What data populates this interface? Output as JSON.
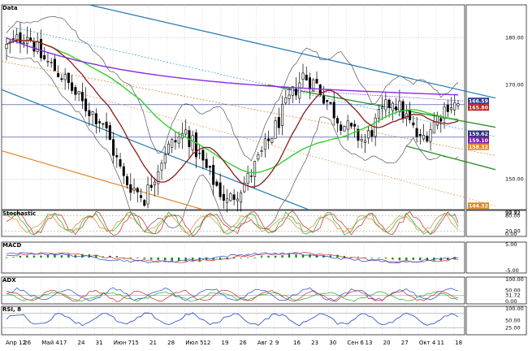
{
  "chart_data": {
    "type": "candlestick-stock-chart",
    "grid": true,
    "x_tick_labels": [
      "Апр 12",
      "26",
      "Май 4",
      "17",
      "24",
      "31",
      "Июн 7",
      "15",
      "21",
      "28",
      "Июл 5",
      "12",
      "19",
      "26",
      "Авг 2",
      "9",
      "16",
      "23",
      "30",
      "Сен 6",
      "13",
      "20",
      "27",
      "Окт 4",
      "11",
      "18"
    ],
    "panels": [
      {
        "name": "Data",
        "ylim": [
          143.5,
          187
        ],
        "y_tick_labels": [
          "180.00",
          "170.00",
          "150.00"
        ],
        "y_tick_values": [
          180,
          170,
          150
        ],
        "value_tags": [
          {
            "text": "166.59",
            "value": 166.59,
            "color": "#2b3c9a"
          },
          {
            "text": "165.80",
            "value": 165.8,
            "color": "#cc1a1a"
          },
          {
            "text": "159.62",
            "value": 159.62,
            "color": "#2d2d7a"
          },
          {
            "text": "159.10",
            "value": 159.1,
            "color": "#7b1aa8"
          },
          {
            "text": "158.32",
            "value": 158.32,
            "color": "#e0862a"
          },
          {
            "text": "144.32",
            "value": 144.32,
            "color": "#e0862a"
          }
        ]
      },
      {
        "name": "Stochastic",
        "y_tick_labels": [
          "97.72",
          "90.92",
          "80.00",
          "20.00",
          "0.00"
        ],
        "y_tick_values": [
          97.72,
          90.92,
          80,
          20,
          0
        ],
        "ylim": [
          0,
          100
        ]
      },
      {
        "name": "MACD",
        "y_tick_labels": [
          "5.00",
          "-5.00"
        ],
        "y_tick_values": [
          5,
          -5
        ],
        "ylim": [
          -6,
          6
        ]
      },
      {
        "name": "ADX",
        "y_tick_labels": [
          "100.00",
          "50.00",
          "31.72",
          "0.00"
        ],
        "y_tick_values": [
          100,
          50,
          31.72,
          0
        ],
        "ylim": [
          0,
          100
        ]
      },
      {
        "name": "RSI, 8",
        "y_tick_labels": [
          "100.00",
          "50.00",
          "25.00"
        ],
        "y_tick_values": [
          100,
          50,
          25
        ],
        "ylim": [
          0,
          100
        ]
      }
    ],
    "colors": {
      "up": "#ffffff",
      "down": "#000000",
      "ma_short": "#8b1a1a",
      "ma_mid": "#33cc33",
      "ma_long": "#8a2be2",
      "bands": "#555555",
      "channel_blue": "#1f77b4",
      "channel_green": "#1a8a1a",
      "channel_orange": "#e0862a"
    }
  }
}
